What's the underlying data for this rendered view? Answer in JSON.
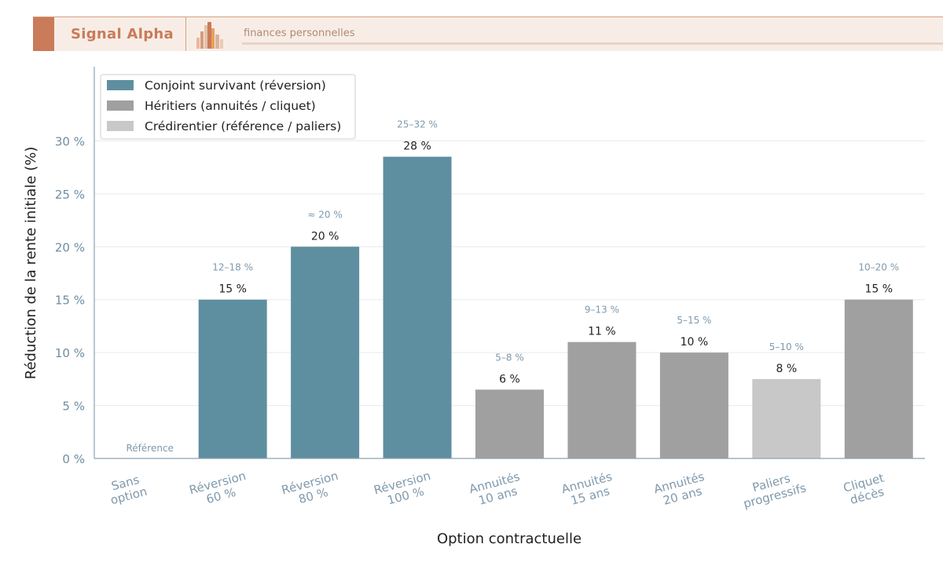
{
  "header": {
    "title": "Signal Alpha",
    "subtitle": "finances personnelles"
  },
  "colors": {
    "banner_accent": "#c97b5a",
    "banner_bg": "#f8ede6",
    "series_conjoint": "#5e8fa0",
    "series_heritiers": "#a0a0a0",
    "series_credirentier": "#c8c8c8",
    "range_label": "#7f99ad"
  },
  "chart_data": {
    "type": "bar",
    "xlabel": "Option contractuelle",
    "ylabel": "Réduction de la rente initiale (%)",
    "ylim": [
      0,
      37
    ],
    "yticks": [
      0,
      5,
      10,
      15,
      20,
      25,
      30
    ],
    "ytick_labels": [
      "0 %",
      "5 %",
      "10 %",
      "15 %",
      "20 %",
      "25 %",
      "30 %"
    ],
    "grid": true,
    "legend_position": "top-left",
    "categories": [
      [
        "Sans",
        "option"
      ],
      [
        "Réversion",
        "60 %"
      ],
      [
        "Réversion",
        "80 %"
      ],
      [
        "Réversion",
        "100 %"
      ],
      [
        "Annuités",
        "10 ans"
      ],
      [
        "Annuités",
        "15 ans"
      ],
      [
        "Annuités",
        "20 ans"
      ],
      [
        "Paliers",
        "progressifs"
      ],
      [
        "Cliquet",
        "décès"
      ]
    ],
    "series": [
      {
        "name": "Conjoint survivant (réversion)",
        "color": "#5e8fa0"
      },
      {
        "name": "Héritiers (annuités / cliquet)",
        "color": "#a0a0a0"
      },
      {
        "name": "Crédirentier (référence / paliers)",
        "color": "#c8c8c8"
      }
    ],
    "bars": [
      {
        "value": 0,
        "series": 2,
        "value_label": "",
        "range_label": "Référence"
      },
      {
        "value": 15,
        "series": 0,
        "value_label": "15 %",
        "range_label": "12–18 %"
      },
      {
        "value": 20,
        "series": 0,
        "value_label": "20 %",
        "range_label": "≈ 20 %"
      },
      {
        "value": 28.5,
        "series": 0,
        "value_label": "28 %",
        "range_label": "25–32 %"
      },
      {
        "value": 6.5,
        "series": 1,
        "value_label": "6 %",
        "range_label": "5–8 %"
      },
      {
        "value": 11,
        "series": 1,
        "value_label": "11 %",
        "range_label": "9–13 %"
      },
      {
        "value": 10,
        "series": 1,
        "value_label": "10 %",
        "range_label": "5–15 %"
      },
      {
        "value": 7.5,
        "series": 2,
        "value_label": "8 %",
        "range_label": "5–10 %"
      },
      {
        "value": 15,
        "series": 1,
        "value_label": "15 %",
        "range_label": "10–20 %"
      }
    ]
  }
}
